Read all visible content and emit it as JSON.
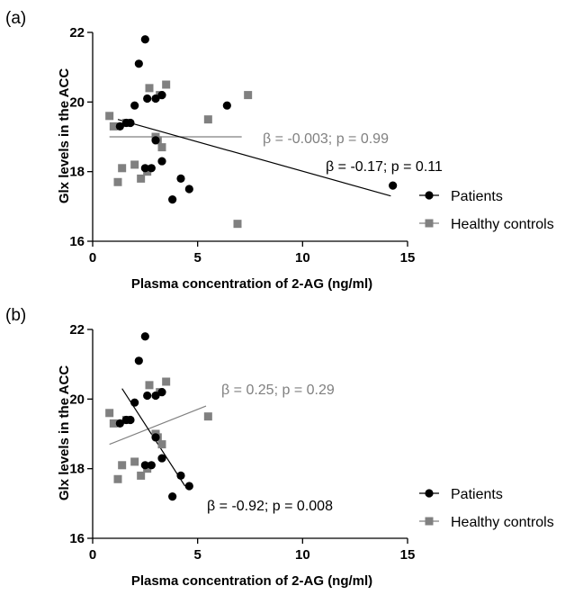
{
  "chart_data": [
    {
      "type": "scatter",
      "panel_label": "(a)",
      "xlabel": "Plasma concentration of 2-AG (ng/ml)",
      "ylabel": "Glx levels in the ACC",
      "xlim": [
        0,
        15
      ],
      "ylim": [
        16,
        22
      ],
      "xticks": [
        "0",
        "5",
        "10",
        "15"
      ],
      "yticks": [
        "16",
        "18",
        "20",
        "22"
      ],
      "legend_position": "right",
      "series": [
        {
          "name": "Patients",
          "marker": "circle",
          "color": "#000000",
          "points": [
            [
              1.3,
              19.3
            ],
            [
              1.6,
              19.4
            ],
            [
              1.8,
              19.4
            ],
            [
              2.0,
              19.9
            ],
            [
              2.2,
              21.1
            ],
            [
              2.5,
              21.8
            ],
            [
              2.6,
              20.1
            ],
            [
              2.5,
              18.1
            ],
            [
              2.8,
              18.1
            ],
            [
              3.0,
              18.9
            ],
            [
              3.0,
              20.1
            ],
            [
              3.3,
              20.2
            ],
            [
              3.3,
              18.3
            ],
            [
              3.8,
              17.2
            ],
            [
              4.2,
              17.8
            ],
            [
              4.6,
              17.5
            ],
            [
              6.4,
              19.9
            ],
            [
              14.3,
              17.6
            ]
          ],
          "fit": {
            "x": [
              1.2,
              14.2
            ],
            "y": [
              19.5,
              17.3
            ]
          },
          "annotation": "β = -0.17; p = 0.11"
        },
        {
          "name": "Healthy controls",
          "marker": "square",
          "color": "#808080",
          "points": [
            [
              0.8,
              19.6
            ],
            [
              1.0,
              19.3
            ],
            [
              1.2,
              17.7
            ],
            [
              1.4,
              18.1
            ],
            [
              1.6,
              19.4
            ],
            [
              2.0,
              18.2
            ],
            [
              2.3,
              17.8
            ],
            [
              2.7,
              20.4
            ],
            [
              3.0,
              19.0
            ],
            [
              3.1,
              18.9
            ],
            [
              3.2,
              20.2
            ],
            [
              3.3,
              18.7
            ],
            [
              3.5,
              20.5
            ],
            [
              5.5,
              19.5
            ],
            [
              6.9,
              16.5
            ],
            [
              7.4,
              20.2
            ],
            [
              2.6,
              18.0
            ]
          ],
          "fit": {
            "x": [
              0.8,
              7.1
            ],
            "y": [
              19.0,
              19.0
            ]
          },
          "annotation": "β = -0.003; p = 0.99"
        }
      ]
    },
    {
      "type": "scatter",
      "panel_label": "(b)",
      "xlabel": "Plasma concentration of 2-AG (ng/ml)",
      "ylabel": "Glx levels in the ACC",
      "xlim": [
        0,
        15
      ],
      "ylim": [
        16,
        22
      ],
      "xticks": [
        "0",
        "5",
        "10",
        "15"
      ],
      "yticks": [
        "16",
        "18",
        "20",
        "22"
      ],
      "legend_position": "right",
      "series": [
        {
          "name": "Patients",
          "marker": "circle",
          "color": "#000000",
          "points": [
            [
              1.3,
              19.3
            ],
            [
              1.6,
              19.4
            ],
            [
              1.8,
              19.4
            ],
            [
              2.0,
              19.9
            ],
            [
              2.2,
              21.1
            ],
            [
              2.5,
              21.8
            ],
            [
              2.6,
              20.1
            ],
            [
              2.5,
              18.1
            ],
            [
              2.8,
              18.1
            ],
            [
              3.0,
              18.9
            ],
            [
              3.0,
              20.1
            ],
            [
              3.3,
              20.2
            ],
            [
              3.3,
              18.3
            ],
            [
              3.8,
              17.2
            ],
            [
              4.2,
              17.8
            ],
            [
              4.6,
              17.5
            ]
          ],
          "fit": {
            "x": [
              1.4,
              4.4
            ],
            "y": [
              20.3,
              17.5
            ]
          },
          "annotation": "β = -0.92; p = 0.008"
        },
        {
          "name": "Healthy controls",
          "marker": "square",
          "color": "#808080",
          "points": [
            [
              0.8,
              19.6
            ],
            [
              1.0,
              19.3
            ],
            [
              1.2,
              17.7
            ],
            [
              1.4,
              18.1
            ],
            [
              1.6,
              19.4
            ],
            [
              2.0,
              18.2
            ],
            [
              2.3,
              17.8
            ],
            [
              2.7,
              20.4
            ],
            [
              3.0,
              19.0
            ],
            [
              3.1,
              18.9
            ],
            [
              3.2,
              20.2
            ],
            [
              3.3,
              18.7
            ],
            [
              3.5,
              20.5
            ],
            [
              5.5,
              19.5
            ],
            [
              2.6,
              18.0
            ]
          ],
          "fit": {
            "x": [
              0.8,
              5.4
            ],
            "y": [
              18.7,
              19.8
            ]
          },
          "annotation": "β = 0.25; p = 0.29"
        }
      ]
    }
  ]
}
